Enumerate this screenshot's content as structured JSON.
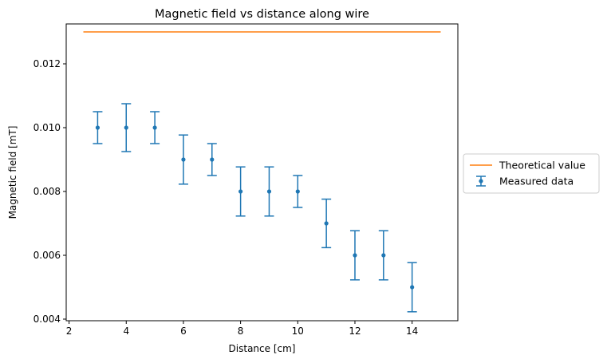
{
  "chart_data": {
    "type": "scatter",
    "title": "Magnetic field vs distance along wire",
    "xlabel": "Distance [cm]",
    "ylabel": "Magnetic field [mT]",
    "xlim": [
      1.9,
      15.6
    ],
    "ylim": [
      0.00395,
      0.01325
    ],
    "xticks": [
      2,
      4,
      6,
      8,
      10,
      12,
      14
    ],
    "yticks": [
      0.004,
      0.006,
      0.008,
      0.01,
      0.012
    ],
    "ytick_labels": [
      "0.004",
      "0.006",
      "0.008",
      "0.010",
      "0.012"
    ],
    "grid": false,
    "legend_placement": "outside-right",
    "series": [
      {
        "name": "Theoretical value",
        "kind": "line",
        "color": "#ff7f0e",
        "x": [
          2.5,
          15
        ],
        "y": [
          0.013,
          0.013
        ]
      },
      {
        "name": "Measured data",
        "kind": "errorbar",
        "color": "#1f77b4",
        "x": [
          3,
          4,
          5,
          6,
          7,
          8,
          9,
          10,
          11,
          12,
          13,
          14
        ],
        "y": [
          0.01,
          0.01,
          0.01,
          0.009,
          0.009,
          0.008,
          0.008,
          0.008,
          0.007,
          0.006,
          0.006,
          0.005
        ],
        "yerr": [
          0.0005,
          0.00075,
          0.0005,
          0.00077,
          0.0005,
          0.00077,
          0.00077,
          0.0005,
          0.00076,
          0.00077,
          0.00077,
          0.00077
        ]
      }
    ]
  }
}
